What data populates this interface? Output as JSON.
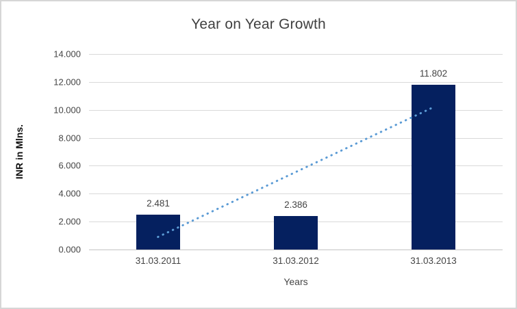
{
  "chart_data": {
    "type": "bar",
    "title": "Year on Year Growth",
    "xlabel": "Years",
    "ylabel": "INR in Mlns.",
    "categories": [
      "31.03.2011",
      "31.03.2012",
      "31.03.2013"
    ],
    "values": [
      2.481,
      2.386,
      11.802
    ],
    "value_labels": [
      "2.481",
      "2.386",
      "11.802"
    ],
    "ylim": [
      0,
      14
    ],
    "yticks": [
      0,
      2,
      4,
      6,
      8,
      10,
      12,
      14
    ],
    "ytick_labels": [
      "0.000",
      "2.000",
      "4.000",
      "6.000",
      "8.000",
      "10.000",
      "12.000",
      "14.000"
    ],
    "grid": "horizontal",
    "legend": "none",
    "bar_color": "#05205f",
    "trendline": {
      "type": "linear",
      "style": "dotted",
      "color": "#5b9bd5",
      "start_value": 0.9,
      "end_value": 10.2
    },
    "colors": {
      "gridline": "#d9d9d9",
      "axis_line": "#c3c3c3",
      "text": "#444444",
      "title_text": "#3f3f3f",
      "frame_border": "#d6d6d6",
      "background": "#ffffff"
    }
  }
}
